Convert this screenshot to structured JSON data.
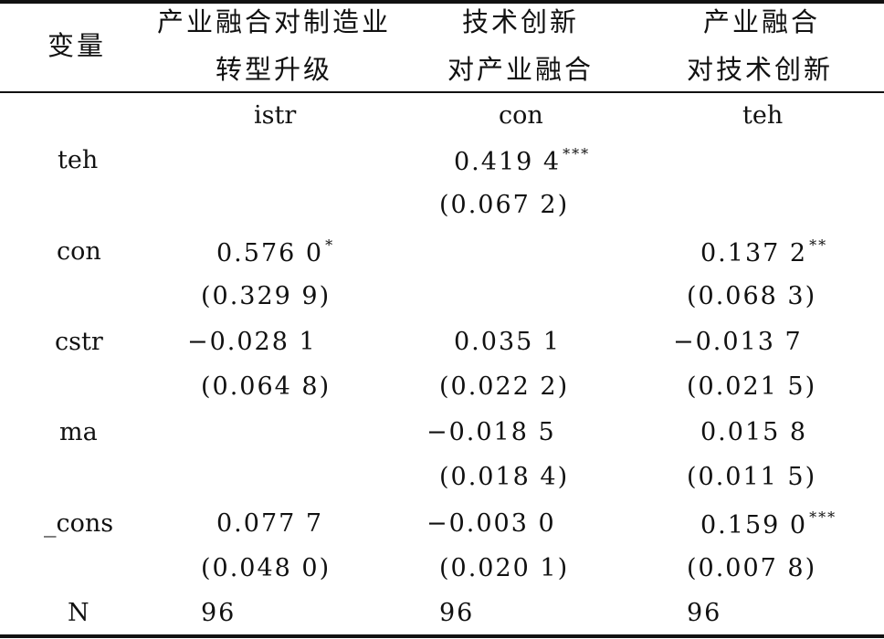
{
  "header": {
    "var_label": "变量",
    "col1": [
      "产业融合对制造业",
      "转型升级"
    ],
    "col2": [
      "技术创新",
      "对产业融合"
    ],
    "col3": [
      "产业融合",
      "对技术创新"
    ]
  },
  "dep_vars": [
    "istr",
    "con",
    "teh"
  ],
  "rows": [
    {
      "var": "teh",
      "c1": {
        "coef": "",
        "stars": "",
        "se": ""
      },
      "c2": {
        "coef": "0.419 4",
        "stars": "***",
        "se": "(0.067 2)"
      },
      "c3": {
        "coef": "",
        "stars": "",
        "se": ""
      }
    },
    {
      "var": "con",
      "c1": {
        "coef": "0.576 0",
        "stars": "*",
        "se": "(0.329 9)"
      },
      "c2": {
        "coef": "",
        "stars": "",
        "se": ""
      },
      "c3": {
        "coef": "0.137 2",
        "stars": "**",
        "se": "(0.068 3)"
      }
    },
    {
      "var": "cstr",
      "c1": {
        "coef": "−0.028 1",
        "stars": "",
        "se": "(0.064 8)"
      },
      "c2": {
        "coef": "0.035 1",
        "stars": "",
        "se": "(0.022 2)"
      },
      "c3": {
        "coef": "−0.013 7",
        "stars": "",
        "se": "(0.021 5)"
      }
    },
    {
      "var": "ma",
      "c1": {
        "coef": "",
        "stars": "",
        "se": ""
      },
      "c2": {
        "coef": "−0.018 5",
        "stars": "",
        "se": "(0.018 4)"
      },
      "c3": {
        "coef": "0.015 8",
        "stars": "",
        "se": "(0.011 5)"
      }
    },
    {
      "var": "_cons",
      "c1": {
        "coef": "0.077 7",
        "stars": "",
        "se": "(0.048 0)"
      },
      "c2": {
        "coef": "−0.003 0",
        "stars": "",
        "se": "(0.020 1)"
      },
      "c3": {
        "coef": "0.159 0",
        "stars": "***",
        "se": "(0.007 8)"
      }
    }
  ],
  "n_row": {
    "label": "N",
    "c1": "96",
    "c2": "96",
    "c3": "96"
  }
}
